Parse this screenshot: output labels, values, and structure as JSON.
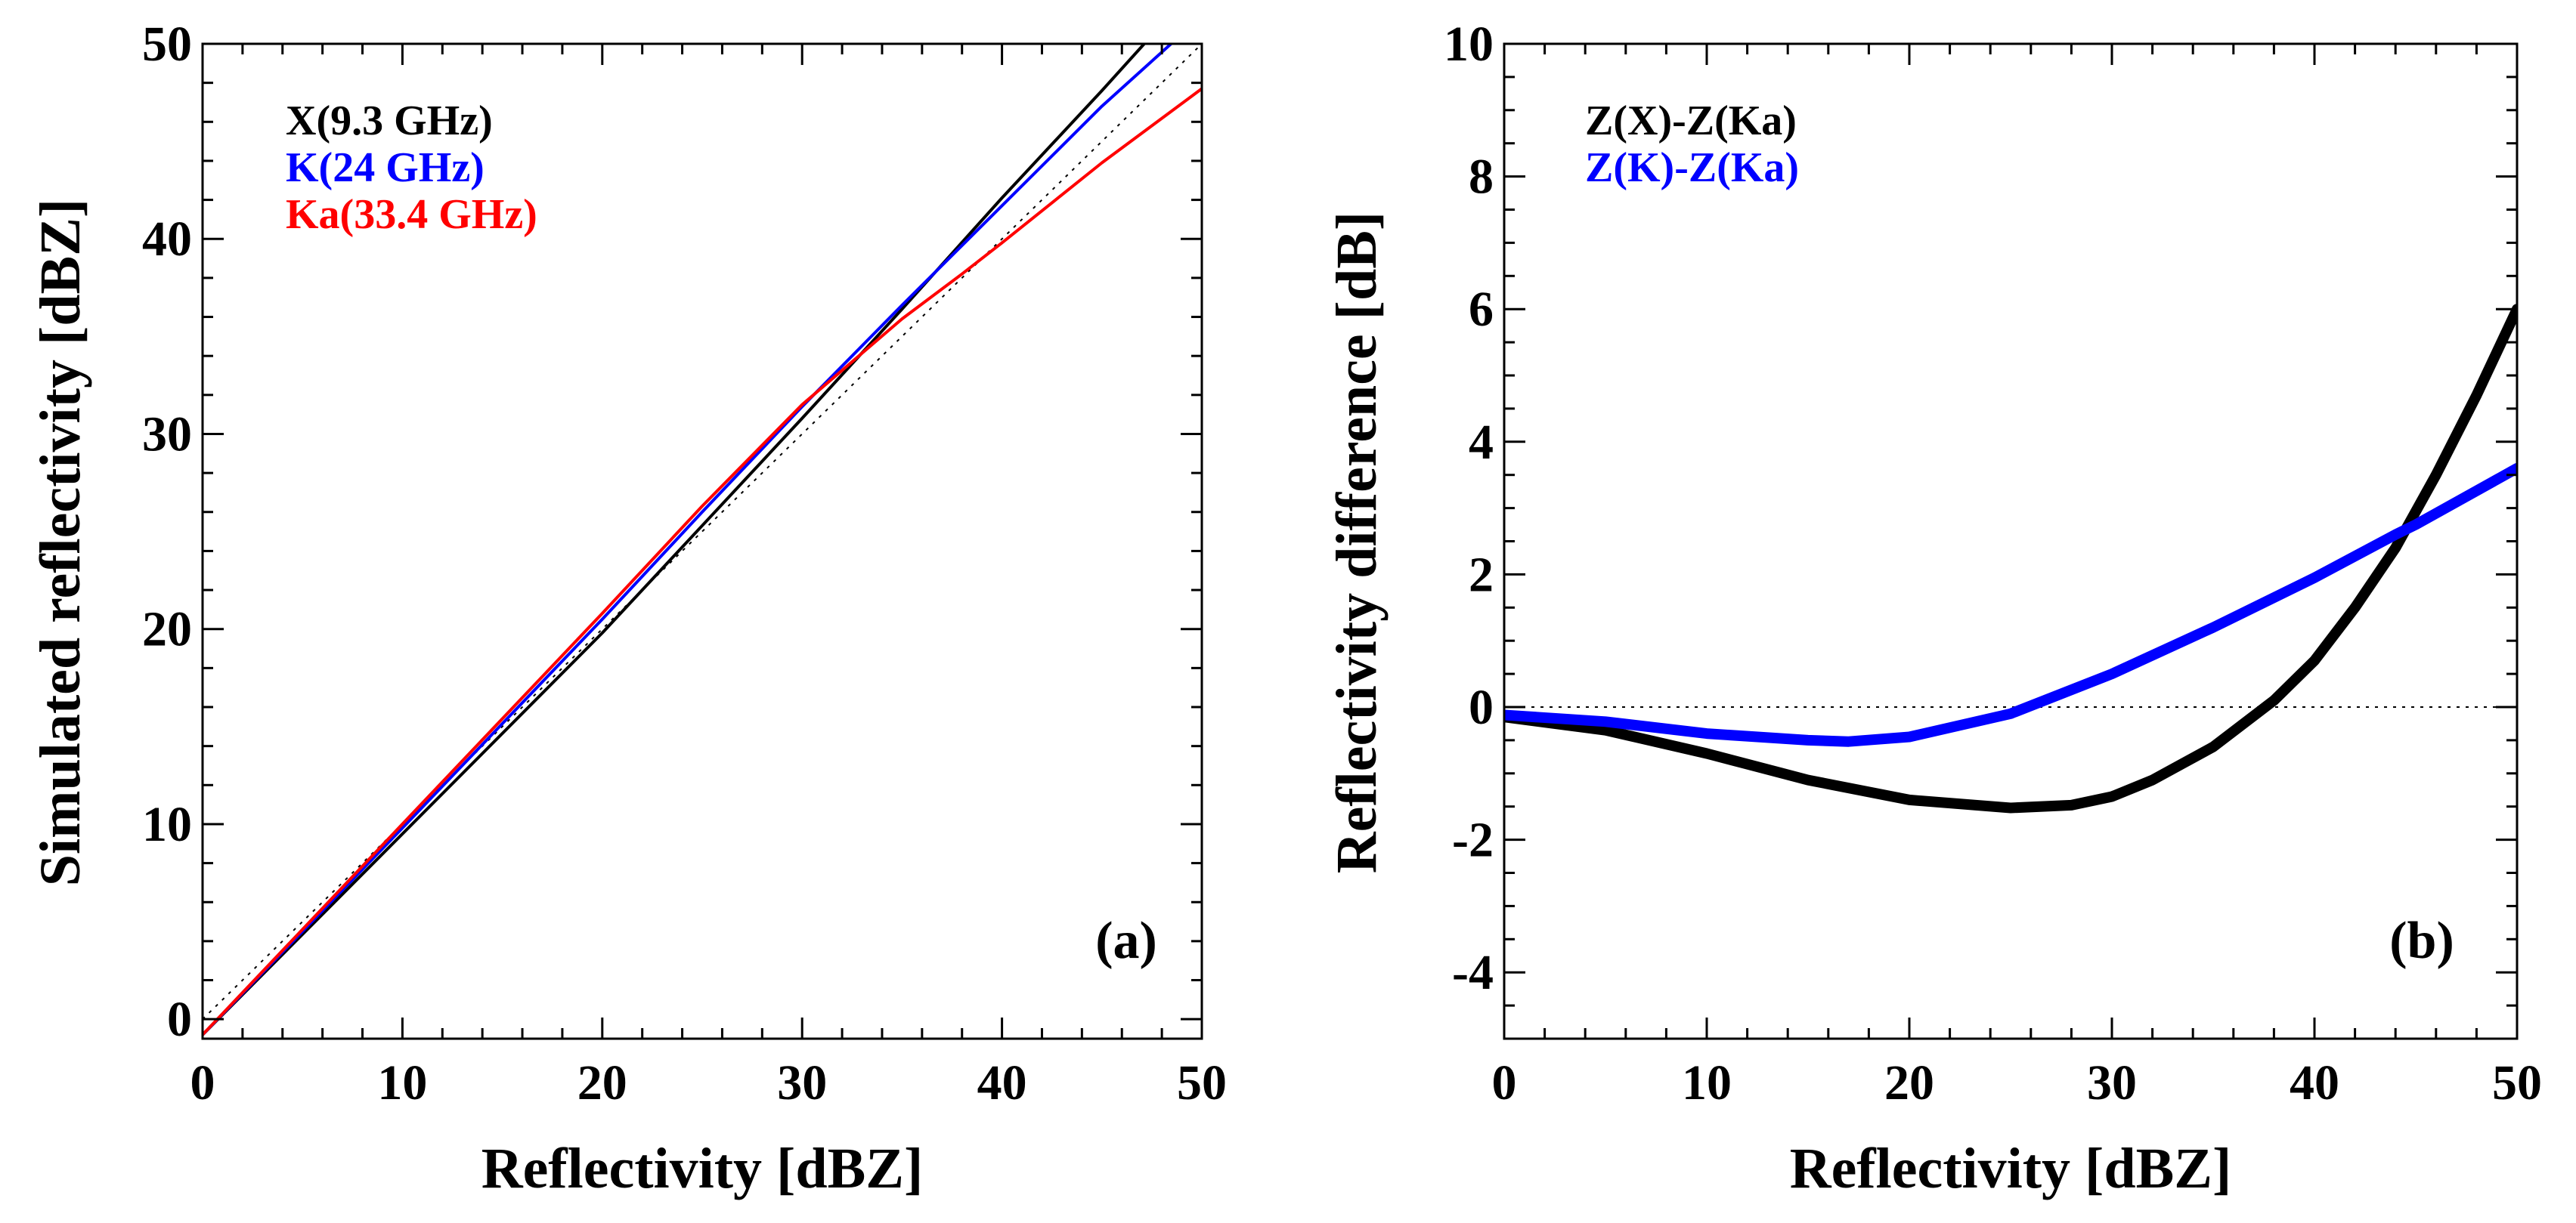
{
  "chart_data": [
    {
      "type": "line",
      "panel_label": "(a)",
      "xlabel": "Reflectivity [dBZ]",
      "ylabel": "Simulated reflectivity [dBZ]",
      "xlim": [
        0,
        50
      ],
      "ylim": [
        -1,
        50
      ],
      "x_ticks": [
        0,
        10,
        20,
        30,
        40,
        50
      ],
      "y_ticks": [
        0,
        10,
        20,
        30,
        40,
        50
      ],
      "x_tick_labels": [
        "0",
        "10",
        "20",
        "30",
        "40",
        "50"
      ],
      "y_tick_labels": [
        "0",
        "10",
        "20",
        "30",
        "40",
        "50"
      ],
      "legend_position": "top-left",
      "reference_line": {
        "style": "dotted",
        "x": [
          0,
          50
        ],
        "y": [
          0,
          50
        ]
      },
      "series": [
        {
          "name": "X(9.3 GHz)",
          "color": "#000000",
          "x": [
            0,
            10,
            20,
            25,
            30,
            35,
            40,
            45,
            48
          ],
          "y": [
            -0.8,
            9.5,
            19.8,
            25.3,
            30.8,
            36.4,
            42.1,
            47.6,
            51.0
          ]
        },
        {
          "name": "K(24 GHz)",
          "color": "#0000ff",
          "x": [
            0,
            10,
            20,
            25,
            30,
            35,
            40,
            45,
            49
          ],
          "y": [
            -0.8,
            9.8,
            20.5,
            26.0,
            31.4,
            36.6,
            41.7,
            46.8,
            50.5
          ]
        },
        {
          "name": "Ka(33.4 GHz)",
          "color": "#ff0000",
          "x": [
            0,
            10,
            20,
            25,
            30,
            35,
            38,
            40,
            45,
            50
          ],
          "y": [
            -0.8,
            10.0,
            20.8,
            26.3,
            31.5,
            35.9,
            38.2,
            39.8,
            43.9,
            47.7
          ]
        }
      ]
    },
    {
      "type": "line",
      "panel_label": "(b)",
      "xlabel": "Reflectivity [dBZ]",
      "ylabel": "Reflectivity difference [dB]",
      "xlim": [
        0,
        50
      ],
      "ylim": [
        -5,
        10
      ],
      "x_ticks": [
        0,
        10,
        20,
        30,
        40,
        50
      ],
      "y_ticks": [
        -4,
        -2,
        0,
        2,
        4,
        6,
        8,
        10
      ],
      "x_tick_labels": [
        "0",
        "10",
        "20",
        "30",
        "40",
        "50"
      ],
      "y_tick_labels": [
        "-4",
        "-2",
        "0",
        "2",
        "4",
        "6",
        "8",
        "10"
      ],
      "legend_position": "top-left",
      "reference_line": {
        "style": "dotted",
        "y_value": 0
      },
      "series": [
        {
          "name": "Z(X)-Z(Ka)",
          "color": "#000000",
          "x": [
            0,
            5,
            10,
            15,
            20,
            25,
            28,
            30,
            32,
            35,
            38,
            40,
            42,
            44,
            46,
            48,
            50
          ],
          "y": [
            -0.15,
            -0.35,
            -0.7,
            -1.1,
            -1.4,
            -1.52,
            -1.48,
            -1.35,
            -1.1,
            -0.6,
            0.1,
            0.7,
            1.5,
            2.4,
            3.5,
            4.7,
            6.0
          ]
        },
        {
          "name": "Z(K)-Z(Ka)",
          "color": "#0000ff",
          "x": [
            0,
            5,
            10,
            15,
            17,
            20,
            25,
            30,
            35,
            40,
            44,
            45,
            50
          ],
          "y": [
            -0.12,
            -0.22,
            -0.4,
            -0.5,
            -0.52,
            -0.45,
            -0.1,
            0.5,
            1.2,
            1.95,
            2.6,
            2.75,
            3.6
          ]
        }
      ]
    }
  ]
}
